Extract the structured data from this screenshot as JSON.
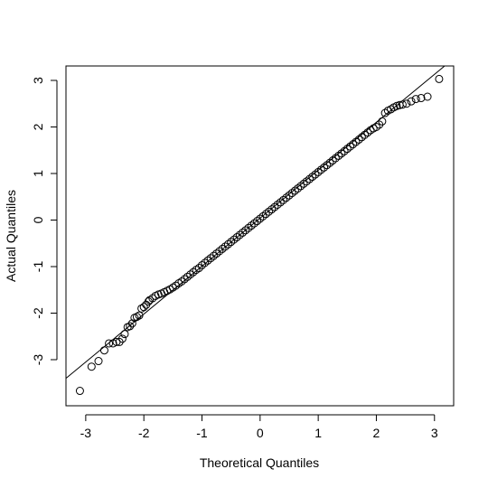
{
  "chart_data": {
    "type": "qqplot",
    "x_label": "Theoretical Quantiles",
    "y_label": "Actual Quantiles",
    "xlim": [
      -3.34,
      3.33
    ],
    "ylim": [
      -3.99,
      3.31
    ],
    "xticks": [
      -3,
      -2,
      -1,
      0,
      1,
      2,
      3
    ],
    "yticks": [
      -3,
      -2,
      -1,
      0,
      1,
      2,
      3
    ],
    "color": "#000000",
    "reference_line": {
      "intercept": 0.04,
      "slope": 1.03
    },
    "x": [
      -3.1,
      -2.9,
      -2.78,
      -2.68,
      -2.6,
      -2.53,
      -2.47,
      -2.42,
      -2.37,
      -2.33,
      -2.28,
      -2.24,
      -2.2,
      -2.16,
      -2.12,
      -2.08,
      -2.04,
      -2.0,
      -1.96,
      -1.92,
      -1.9,
      -1.85,
      -1.8,
      -1.75,
      -1.7,
      -1.65,
      -1.6,
      -1.55,
      -1.5,
      -1.45,
      -1.4,
      -1.35,
      -1.3,
      -1.25,
      -1.2,
      -1.15,
      -1.1,
      -1.05,
      -1,
      -0.95,
      -0.9,
      -0.85,
      -0.8,
      -0.75,
      -0.7,
      -0.65,
      -0.6,
      -0.55,
      -0.5,
      -0.45,
      -0.4,
      -0.35,
      -0.3,
      -0.25,
      -0.2,
      -0.15,
      -0.1,
      -0.05,
      0,
      0.05,
      0.1,
      0.15,
      0.2,
      0.25,
      0.3,
      0.35,
      0.4,
      0.45,
      0.5,
      0.55,
      0.6,
      0.65,
      0.7,
      0.75,
      0.8,
      0.85,
      0.9,
      0.95,
      1,
      1.05,
      1.1,
      1.15,
      1.2,
      1.25,
      1.3,
      1.35,
      1.4,
      1.45,
      1.5,
      1.55,
      1.6,
      1.65,
      1.7,
      1.75,
      1.8,
      1.85,
      1.9,
      1.95,
      2.0,
      2.05,
      2.1,
      2.15,
      2.2,
      2.25,
      2.3,
      2.35,
      2.4,
      2.45,
      2.52,
      2.6,
      2.68,
      2.77,
      2.88,
      3.08
    ],
    "y": [
      -3.67,
      -3.15,
      -3.03,
      -2.8,
      -2.65,
      -2.65,
      -2.62,
      -2.62,
      -2.55,
      -2.45,
      -2.3,
      -2.28,
      -2.22,
      -2.1,
      -2.08,
      -2.05,
      -1.9,
      -1.87,
      -1.82,
      -1.75,
      -1.72,
      -1.68,
      -1.63,
      -1.6,
      -1.58,
      -1.55,
      -1.52,
      -1.49,
      -1.45,
      -1.41,
      -1.36,
      -1.32,
      -1.27,
      -1.22,
      -1.17,
      -1.12,
      -1.07,
      -1.03,
      -0.97,
      -0.92,
      -0.87,
      -0.82,
      -0.77,
      -0.72,
      -0.67,
      -0.62,
      -0.57,
      -0.52,
      -0.47,
      -0.42,
      -0.37,
      -0.32,
      -0.27,
      -0.22,
      -0.17,
      -0.12,
      -0.07,
      -0.02,
      0.03,
      0.08,
      0.13,
      0.18,
      0.23,
      0.28,
      0.33,
      0.38,
      0.43,
      0.48,
      0.53,
      0.58,
      0.63,
      0.68,
      0.73,
      0.78,
      0.83,
      0.88,
      0.93,
      0.98,
      1.03,
      1.08,
      1.13,
      1.18,
      1.23,
      1.28,
      1.33,
      1.38,
      1.43,
      1.48,
      1.53,
      1.58,
      1.63,
      1.68,
      1.73,
      1.78,
      1.83,
      1.88,
      1.93,
      1.97,
      2.0,
      2.05,
      2.12,
      2.3,
      2.35,
      2.38,
      2.42,
      2.45,
      2.47,
      2.48,
      2.5,
      2.55,
      2.6,
      2.62,
      2.65,
      3.03
    ]
  }
}
